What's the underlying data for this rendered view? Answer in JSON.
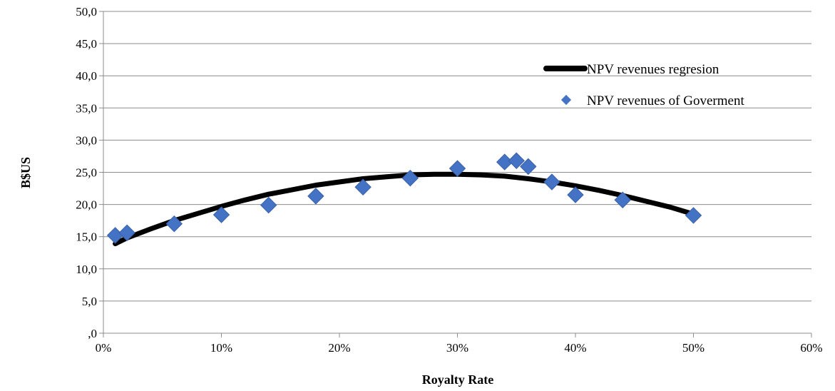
{
  "chart_data": {
    "type": "scatter",
    "xlabel": "Royalty Rate",
    "ylabel": "B$US",
    "xlim": [
      0,
      0.6
    ],
    "ylim": [
      0,
      50
    ],
    "x_ticks": [
      0,
      0.1,
      0.2,
      0.3,
      0.4,
      0.5,
      0.6
    ],
    "x_tick_labels": [
      "0%",
      "10%",
      "20%",
      "30%",
      "40%",
      "50%",
      "60%"
    ],
    "y_ticks": [
      0,
      5,
      10,
      15,
      20,
      25,
      30,
      35,
      40,
      45,
      50
    ],
    "y_tick_labels": [
      ",0",
      "5,0",
      "10,0",
      "15,0",
      "20,0",
      "25,0",
      "30,0",
      "35,0",
      "40,0",
      "45,0",
      "50,0"
    ],
    "grid": "horizontal",
    "legend_position": "right",
    "series": [
      {
        "name": "NPV revenues regresion",
        "kind": "line",
        "color": "#000000",
        "x": [
          0.01,
          0.02,
          0.04,
          0.06,
          0.08,
          0.1,
          0.12,
          0.14,
          0.16,
          0.18,
          0.2,
          0.22,
          0.24,
          0.26,
          0.28,
          0.3,
          0.32,
          0.34,
          0.36,
          0.38,
          0.4,
          0.42,
          0.44,
          0.46,
          0.48,
          0.5
        ],
        "y": [
          13.9,
          14.8,
          16.2,
          17.5,
          18.6,
          19.7,
          20.7,
          21.6,
          22.3,
          23.0,
          23.5,
          24.0,
          24.3,
          24.6,
          24.7,
          24.7,
          24.6,
          24.4,
          24.0,
          23.5,
          22.9,
          22.2,
          21.4,
          20.5,
          19.6,
          18.5
        ]
      },
      {
        "name": "NPV revenues of Goverment",
        "kind": "scatter",
        "color": "#4472c4",
        "x": [
          0.01,
          0.02,
          0.06,
          0.1,
          0.14,
          0.18,
          0.22,
          0.26,
          0.3,
          0.34,
          0.35,
          0.36,
          0.38,
          0.4,
          0.44,
          0.5
        ],
        "y": [
          15.2,
          15.6,
          17.0,
          18.4,
          19.9,
          21.3,
          22.7,
          24.1,
          25.6,
          26.6,
          26.8,
          25.9,
          23.5,
          21.5,
          20.7,
          18.3
        ]
      }
    ]
  }
}
